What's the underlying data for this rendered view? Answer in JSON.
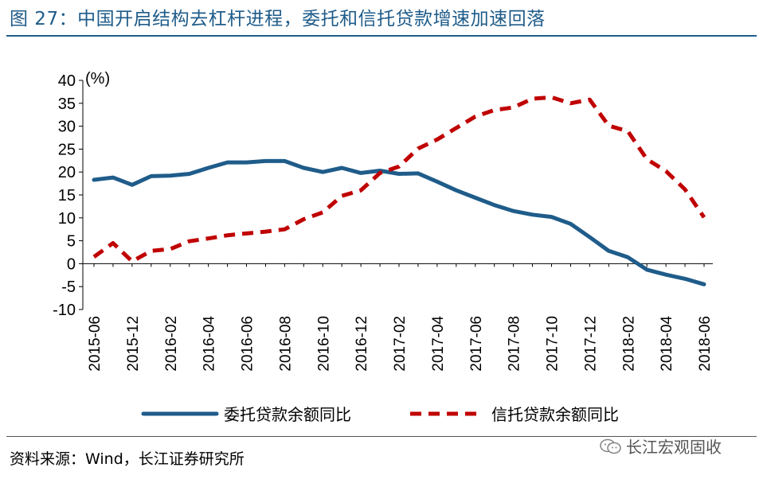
{
  "title": "图 27：中国开启结构去杠杆进程，委托和信托贷款增速加速回落",
  "source": "资料来源：Wind，长江证券研究所",
  "watermark": "长江宏观固收",
  "chart_data": {
    "type": "line",
    "ylabel": "(%)",
    "ylim": [
      -10,
      40
    ],
    "yticks": [
      "40",
      "35",
      "30",
      "25",
      "20",
      "15",
      "10",
      "5",
      "0",
      "-5",
      "-10"
    ],
    "x": [
      "2015-06",
      "2015-09",
      "2015-12",
      "2016-01",
      "2016-02",
      "2016-03",
      "2016-04",
      "2016-05",
      "2016-06",
      "2016-07",
      "2016-08",
      "2016-09",
      "2016-10",
      "2016-11",
      "2016-12",
      "2017-01",
      "2017-02",
      "2017-03",
      "2017-04",
      "2017-05",
      "2017-06",
      "2017-07",
      "2017-08",
      "2017-09",
      "2017-10",
      "2017-11",
      "2017-12",
      "2018-01",
      "2018-02",
      "2018-03",
      "2018-04",
      "2018-05",
      "2018-06"
    ],
    "xtick_labels": [
      "2015-06",
      "2015-12",
      "2016-02",
      "2016-04",
      "2016-06",
      "2016-08",
      "2016-10",
      "2016-12",
      "2017-02",
      "2017-04",
      "2017-06",
      "2017-08",
      "2017-10",
      "2017-12",
      "2018-02",
      "2018-04",
      "2018-06"
    ],
    "legend_position": "bottom",
    "grid": false,
    "series": [
      {
        "name": "委托贷款余额同比",
        "color": "#1f5c8a",
        "style": "solid",
        "values": [
          18.3,
          18.8,
          17.2,
          19.1,
          19.2,
          19.6,
          20.9,
          22.1,
          22.1,
          22.4,
          22.4,
          20.9,
          20.0,
          20.9,
          19.8,
          20.3,
          19.6,
          19.7,
          17.9,
          16.0,
          14.4,
          12.8,
          11.5,
          10.7,
          10.2,
          8.7,
          5.8,
          2.8,
          1.4,
          -1.3,
          -2.4,
          -3.3,
          -4.5
        ]
      },
      {
        "name": "信托贷款余额同比",
        "color": "#c00000",
        "style": "dashed",
        "values": [
          1.5,
          4.5,
          0.5,
          2.8,
          3.2,
          4.9,
          5.5,
          6.2,
          6.6,
          7.0,
          7.5,
          9.7,
          11.2,
          14.8,
          16.0,
          19.8,
          21.2,
          25.1,
          27.1,
          29.6,
          32.1,
          33.5,
          34.1,
          36.0,
          36.3,
          35.0,
          35.8,
          30.1,
          28.9,
          22.8,
          20.2,
          16.2,
          10.1
        ]
      }
    ]
  }
}
